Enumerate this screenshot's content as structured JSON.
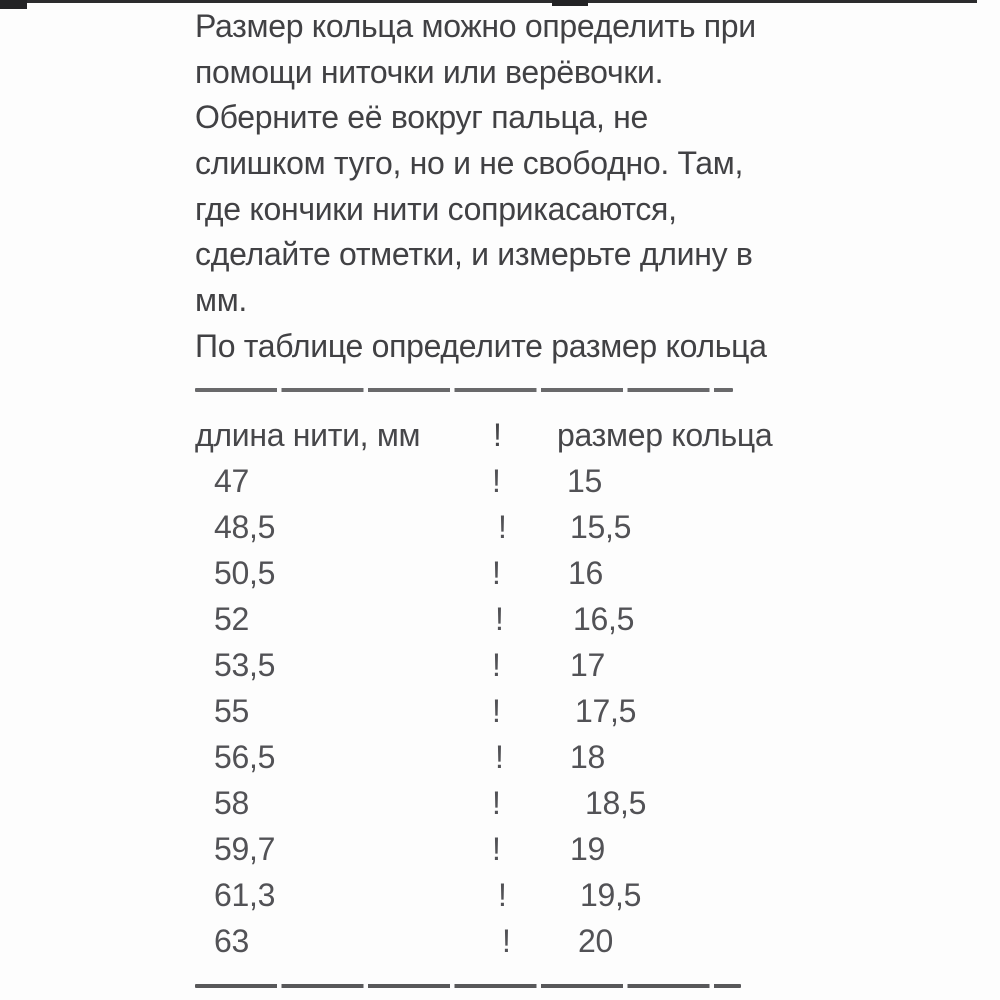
{
  "colors": {
    "background": "#fdfdfd",
    "paragraph_text": "#414144",
    "table_text": "#525256",
    "divider": "#69696b",
    "top_edge": "#2b2b2d"
  },
  "intro": {
    "lines": [
      "Размер кольца можно определить при",
      "помощи ниточки или верёвочки.",
      "Оберните её вокруг пальца, не",
      "слишком туго, но и не свободно. Там,",
      "где кончики нити соприкасаются,",
      "сделайте отметки, и измерьте длину в",
      "мм.",
      "По таблице определите размер кольца"
    ]
  },
  "table": {
    "header": {
      "length_label": "длина нити, мм",
      "separator": "!",
      "size_label": "размер кольца"
    },
    "rows": [
      {
        "length": "47",
        "separator": "!",
        "size": "15"
      },
      {
        "length": "48,5",
        "separator": "!",
        "size": "15,5"
      },
      {
        "length": "50,5",
        "separator": "!",
        "size": "16"
      },
      {
        "length": "52",
        "separator": "!",
        "size": "16,5"
      },
      {
        "length": "53,5",
        "separator": "!",
        "size": "17"
      },
      {
        "length": "55",
        "separator": "!",
        "size": "17,5"
      },
      {
        "length": "56,5",
        "separator": "!",
        "size": "18"
      },
      {
        "length": "58",
        "separator": "!",
        "size": "18,5"
      },
      {
        "length": "59,7",
        "separator": "!",
        "size": "19"
      },
      {
        "length": "61,3",
        "separator": "!",
        "size": "19,5"
      },
      {
        "length": "63",
        "separator": "!",
        "size": "20"
      }
    ]
  }
}
